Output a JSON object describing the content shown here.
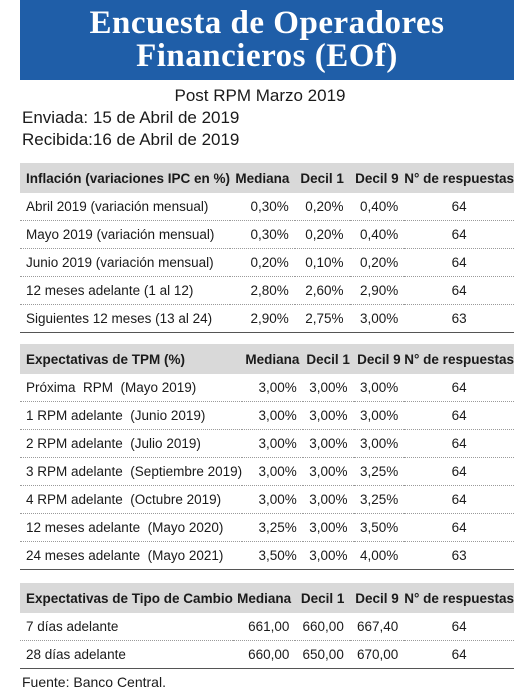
{
  "header": {
    "title_line1": "Encuesta de Operadores",
    "title_line2": "Financieros (EOf)",
    "subtitle": "Post RPM Marzo 2019",
    "sent": "Enviada: 15 de Abril de 2019",
    "received": "Recibida:16 de Abril de 2019",
    "banner_color": "#1f5ea8"
  },
  "tables": [
    {
      "headers": [
        "Inflación (variaciones IPC en %)",
        "Mediana",
        "Decil 1",
        "Decil 9",
        "N° de respuestas"
      ],
      "rows": [
        [
          "Abril 2019 (variación mensual)",
          "0,30%",
          "0,20%",
          "0,40%",
          "64"
        ],
        [
          "Mayo 2019 (variación mensual)",
          "0,30%",
          "0,20%",
          "0,40%",
          "64"
        ],
        [
          "Junio 2019 (variación mensual)",
          "0,20%",
          "0,10%",
          "0,20%",
          "64"
        ],
        [
          "12 meses adelante (1 al 12)",
          "2,80%",
          "2,60%",
          "2,90%",
          "64"
        ],
        [
          "Siguientes 12 meses (13 al 24)",
          "2,90%",
          "2,75%",
          "3,00%",
          "63"
        ]
      ]
    },
    {
      "headers": [
        "Expectativas de TPM (%)",
        "Mediana",
        "Decil 1",
        "Decil 9",
        "N° de respuestas"
      ],
      "rows": [
        [
          "Próxima  RPM  (Mayo 2019)",
          "3,00%",
          "3,00%",
          "3,00%",
          "64"
        ],
        [
          "1 RPM adelante  (Junio 2019)",
          "3,00%",
          "3,00%",
          "3,00%",
          "64"
        ],
        [
          "2 RPM adelante  (Julio 2019)",
          "3,00%",
          "3,00%",
          "3,00%",
          "64"
        ],
        [
          "3 RPM adelante  (Septiembre 2019)",
          "3,00%",
          "3,00%",
          "3,25%",
          "64"
        ],
        [
          "4 RPM adelante  (Octubre 2019)",
          "3,00%",
          "3,00%",
          "3,25%",
          "64"
        ],
        [
          "12 meses adelante  (Mayo 2020)",
          "3,25%",
          "3,00%",
          "3,50%",
          "64"
        ],
        [
          "24 meses adelante  (Mayo 2021)",
          "3,50%",
          "3,00%",
          "4,00%",
          "63"
        ]
      ]
    },
    {
      "headers": [
        "Expectativas de Tipo de Cambio",
        "Mediana",
        "Decil 1",
        "Decil 9",
        "N° de respuestas"
      ],
      "rows": [
        [
          "7 días adelante",
          "661,00",
          "660,00",
          "667,40",
          "64"
        ],
        [
          "28 días adelante",
          "660,00",
          "650,00",
          "670,00",
          "64"
        ]
      ]
    }
  ],
  "footer": {
    "source": "Fuente: Banco Central."
  }
}
